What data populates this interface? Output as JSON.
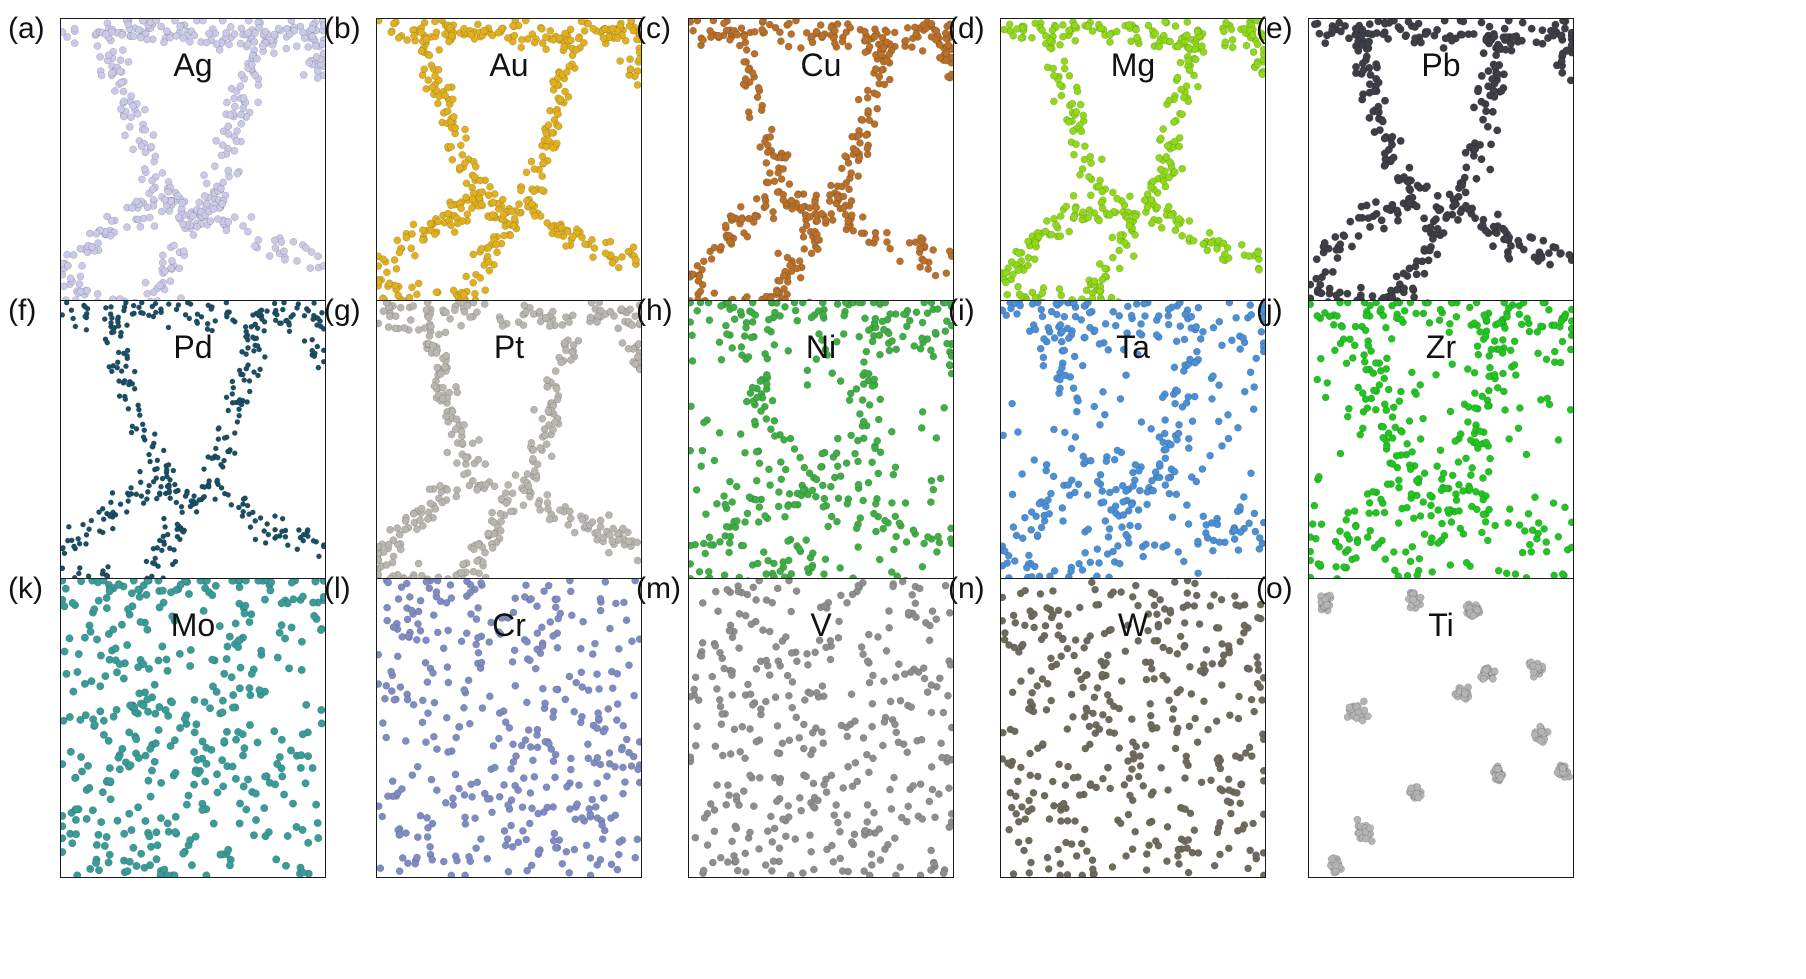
{
  "figure": {
    "panels": [
      {
        "letter": "(a)",
        "element": "Ag",
        "color": "#c9c9e8",
        "pattern": "network",
        "dots": 520,
        "radius": 3.6
      },
      {
        "letter": "(b)",
        "element": "Au",
        "color": "#e0b020",
        "pattern": "network",
        "dots": 520,
        "radius": 3.6
      },
      {
        "letter": "(c)",
        "element": "Cu",
        "color": "#b8702a",
        "pattern": "network",
        "dots": 480,
        "radius": 3.6
      },
      {
        "letter": "(d)",
        "element": "Mg",
        "color": "#8fd81a",
        "pattern": "network",
        "dots": 470,
        "radius": 3.6
      },
      {
        "letter": "(e)",
        "element": "Pb",
        "color": "#3e3e46",
        "pattern": "network",
        "dots": 470,
        "radius": 3.8
      },
      {
        "letter": "(f)",
        "element": "Pd",
        "color": "#1a4f66",
        "pattern": "network",
        "dots": 460,
        "radius": 2.6
      },
      {
        "letter": "(g)",
        "element": "Pt",
        "color": "#b9b6b0",
        "pattern": "network",
        "dots": 480,
        "radius": 3.6
      },
      {
        "letter": "(h)",
        "element": "Ni",
        "color": "#3fae44",
        "pattern": "network-loose",
        "dots": 430,
        "radius": 3.6
      },
      {
        "letter": "(i)",
        "element": "Ta",
        "color": "#4b8fd6",
        "pattern": "network-loose",
        "dots": 430,
        "radius": 3.6
      },
      {
        "letter": "(j)",
        "element": "Zr",
        "color": "#22c422",
        "pattern": "network-loose",
        "dots": 440,
        "radius": 3.6
      },
      {
        "letter": "(k)",
        "element": "Mo",
        "color": "#3a9c98",
        "pattern": "random-band",
        "dots": 420,
        "radius": 3.8
      },
      {
        "letter": "(l)",
        "element": "Cr",
        "color": "#7f8cc4",
        "pattern": "random",
        "dots": 380,
        "radius": 3.6
      },
      {
        "letter": "(m)",
        "element": "V",
        "color": "#8e8e8e",
        "pattern": "random",
        "dots": 360,
        "radius": 3.6
      },
      {
        "letter": "(n)",
        "element": "W",
        "color": "#6e6a5e",
        "pattern": "random",
        "dots": 390,
        "radius": 3.6
      },
      {
        "letter": "(o)",
        "element": "Ti",
        "color": "#b4b4b4",
        "pattern": "clusters",
        "dots": 300,
        "radius": 3.6
      }
    ]
  }
}
